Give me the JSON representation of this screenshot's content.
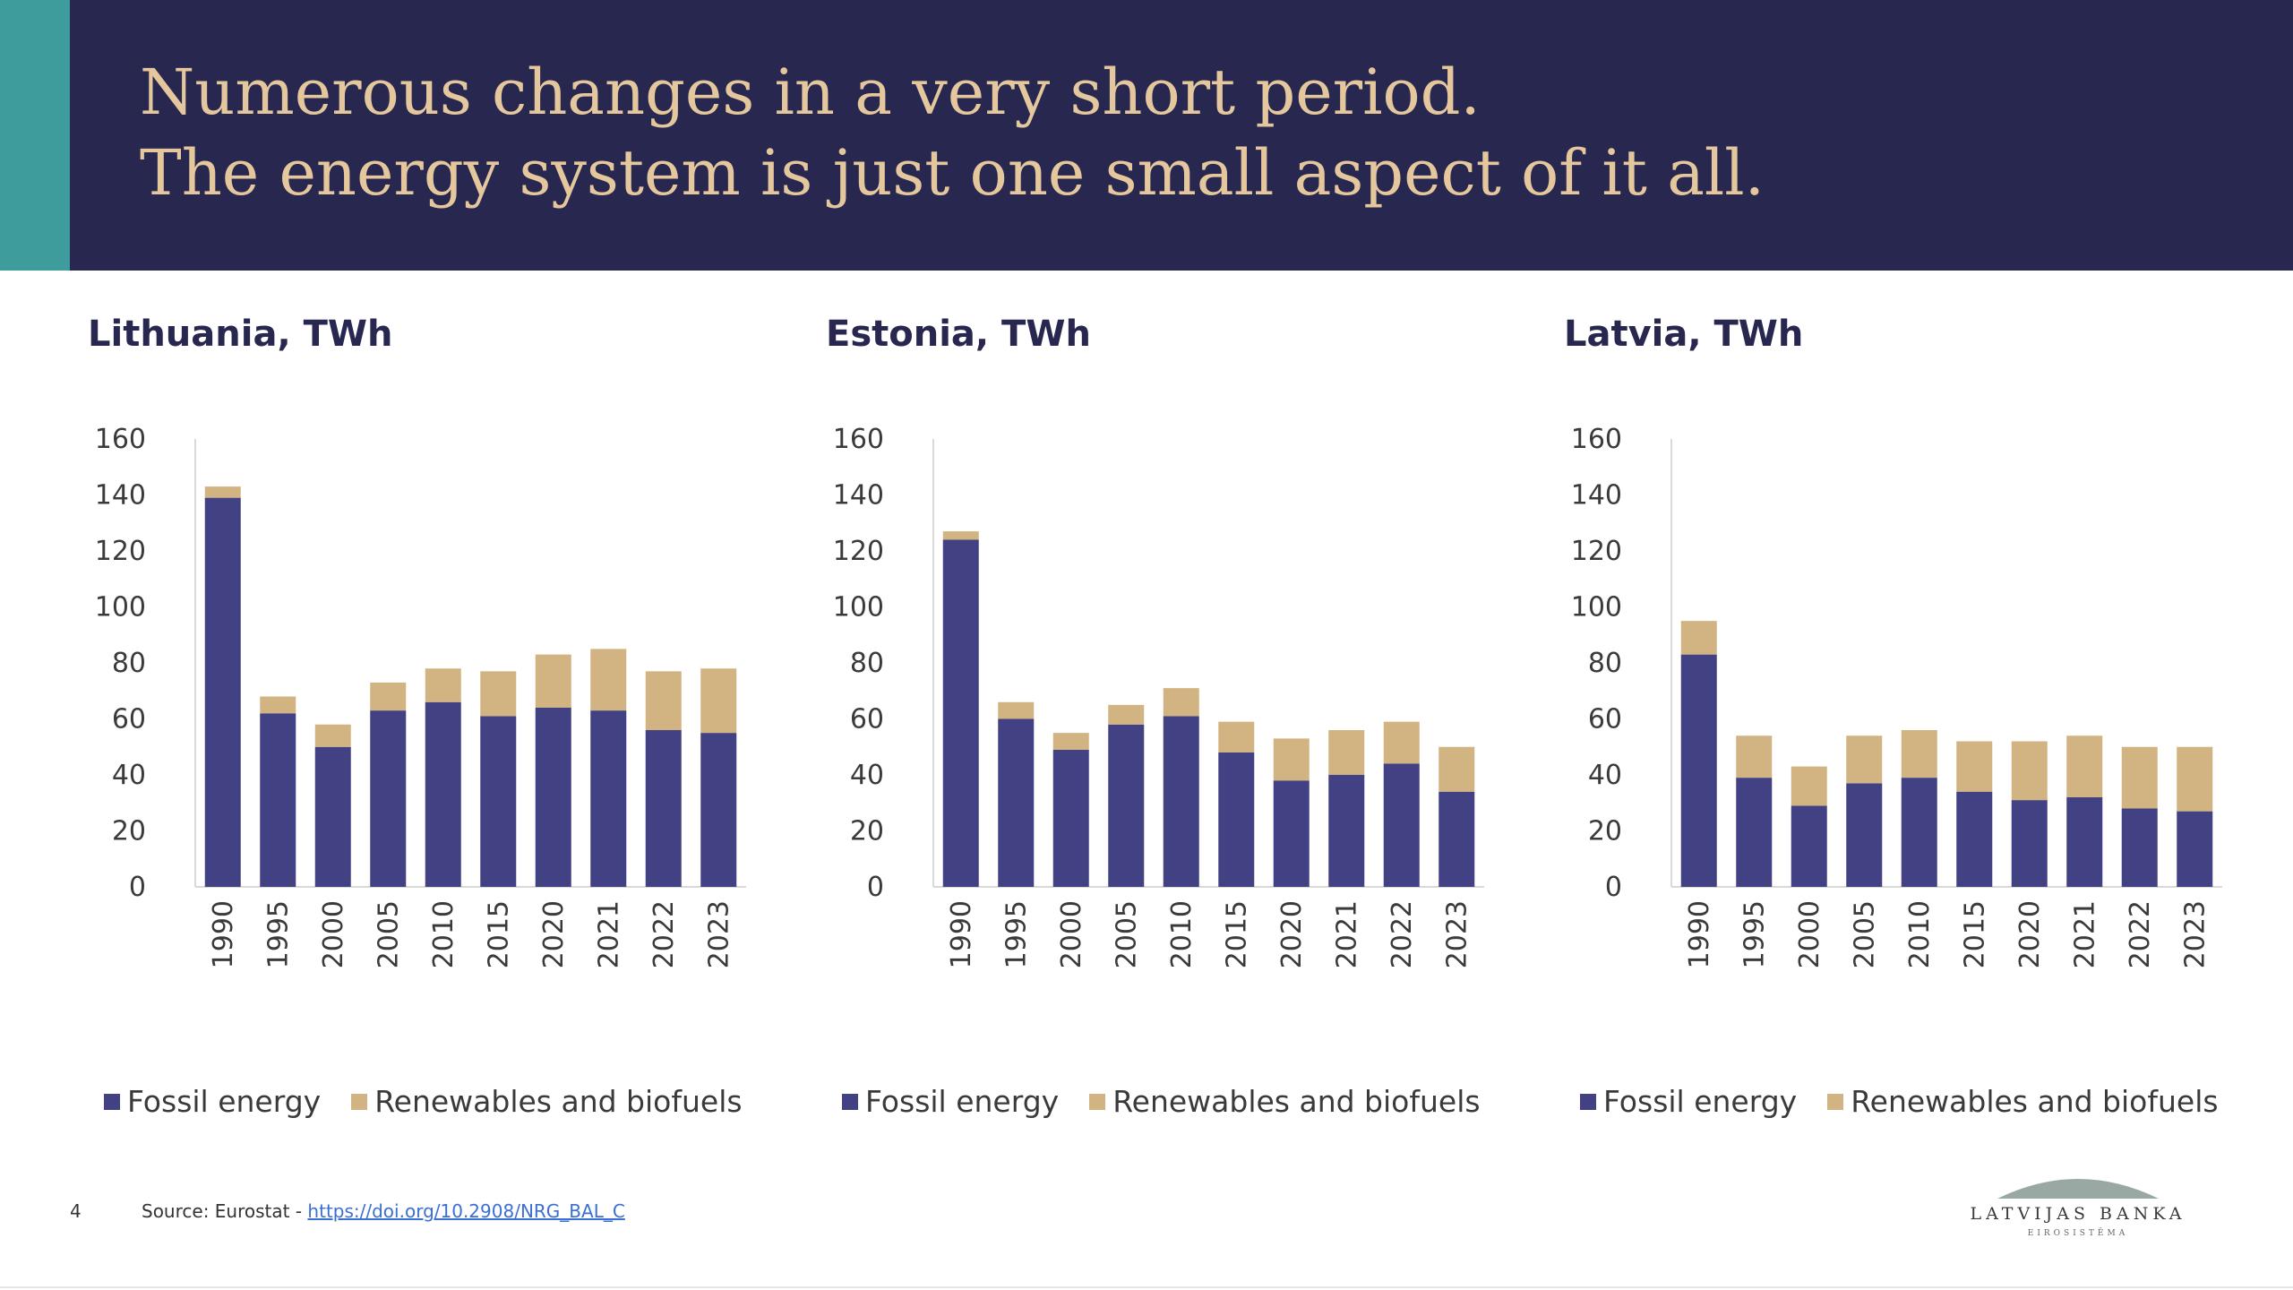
{
  "header": {
    "title_line1": "Numerous changes in a very short period.",
    "title_line2": "The energy system is just one small aspect of it all."
  },
  "colors": {
    "header_bg": "#27274f",
    "accent": "#3f9c9c",
    "title_text": "#e4c79c",
    "fossil": "#414184",
    "renewables": "#d2b482"
  },
  "legend": {
    "fossil": "Fossil energy",
    "renewables": "Renewables and biofuels"
  },
  "chart_data": [
    {
      "type": "bar",
      "stacked": true,
      "title": "Lithuania, TWh",
      "categories": [
        "1990",
        "1995",
        "2000",
        "2005",
        "2010",
        "2015",
        "2020",
        "2021",
        "2022",
        "2023"
      ],
      "series": [
        {
          "name": "Fossil energy",
          "values": [
            139,
            62,
            50,
            63,
            66,
            61,
            64,
            63,
            56,
            55
          ]
        },
        {
          "name": "Renewables and biofuels",
          "values": [
            4,
            6,
            8,
            10,
            12,
            16,
            19,
            22,
            21,
            23
          ]
        }
      ],
      "ylim": [
        0,
        160
      ],
      "yticks": [
        "0",
        "20",
        "40",
        "60",
        "80",
        "100",
        "120",
        "140",
        "160"
      ],
      "legend_position": "bottom"
    },
    {
      "type": "bar",
      "stacked": true,
      "title": "Estonia, TWh",
      "categories": [
        "1990",
        "1995",
        "2000",
        "2005",
        "2010",
        "2015",
        "2020",
        "2021",
        "2022",
        "2023"
      ],
      "series": [
        {
          "name": "Fossil energy",
          "values": [
            124,
            60,
            49,
            58,
            61,
            48,
            38,
            40,
            44,
            34
          ]
        },
        {
          "name": "Renewables and biofuels",
          "values": [
            3,
            6,
            6,
            7,
            10,
            11,
            15,
            16,
            15,
            16
          ]
        }
      ],
      "ylim": [
        0,
        160
      ],
      "yticks": [
        "0",
        "20",
        "40",
        "60",
        "80",
        "100",
        "120",
        "140",
        "160"
      ],
      "legend_position": "bottom"
    },
    {
      "type": "bar",
      "stacked": true,
      "title": "Latvia, TWh",
      "categories": [
        "1990",
        "1995",
        "2000",
        "2005",
        "2010",
        "2015",
        "2020",
        "2021",
        "2022",
        "2023"
      ],
      "series": [
        {
          "name": "Fossil energy",
          "values": [
            83,
            39,
            29,
            37,
            39,
            34,
            31,
            32,
            28,
            27
          ]
        },
        {
          "name": "Renewables and biofuels",
          "values": [
            12,
            15,
            14,
            17,
            17,
            18,
            21,
            22,
            22,
            23
          ]
        }
      ],
      "ylim": [
        0,
        160
      ],
      "yticks": [
        "0",
        "20",
        "40",
        "60",
        "80",
        "100",
        "120",
        "140",
        "160"
      ],
      "legend_position": "bottom"
    }
  ],
  "footer": {
    "page_number": "4",
    "source_prefix": "Source: Eurostat - ",
    "source_link": "https://doi.org/10.2908/NRG_BAL_C"
  },
  "logo": {
    "name": "LATVIJAS BANKA",
    "subtitle": "EIROSISTĒMA"
  }
}
